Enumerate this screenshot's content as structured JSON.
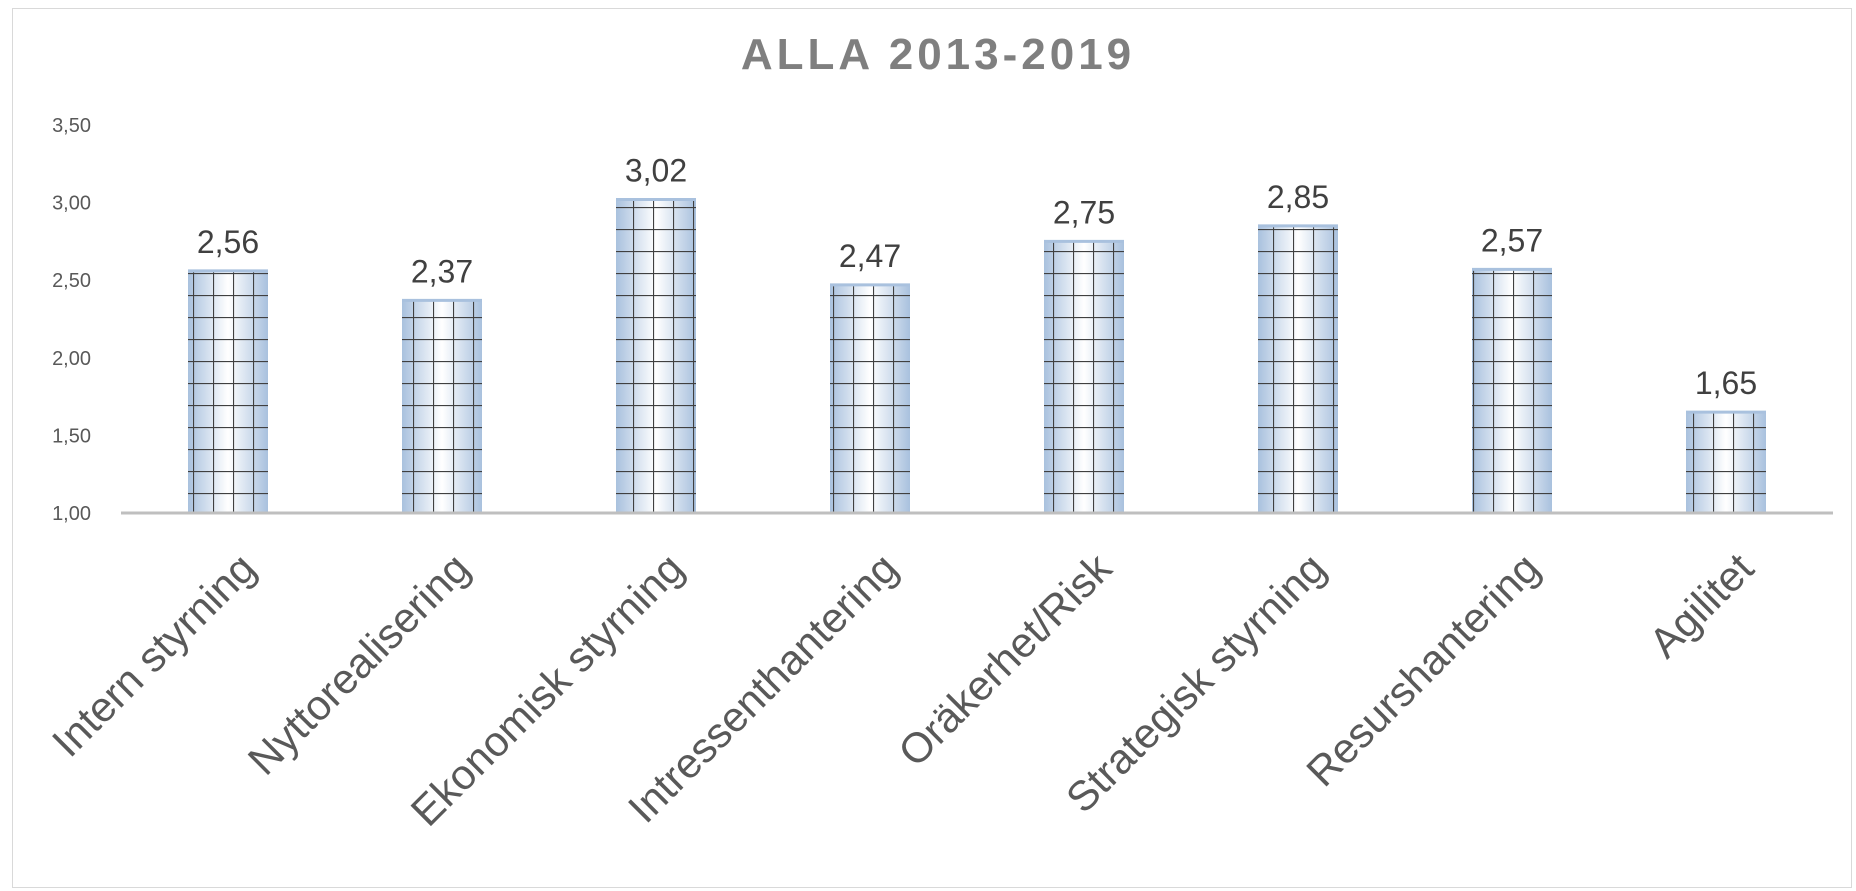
{
  "colors": {
    "bar_fill_edge": "#a9c1de",
    "bar_fill_center": "#ffffff",
    "grid_pattern": "#404040",
    "axis_line": "#bfbfbf",
    "title": "#7f7f7f"
  },
  "chart_data": {
    "type": "bar",
    "title": "ALLA 2013-2019",
    "categories": [
      "Intern styrning",
      "Nyttorealisering",
      "Ekonomisk styrning",
      "Intressenthantering",
      "Oräkerhet/Risk",
      "Strategisk styrning",
      "Resurshantering",
      "Agilitet"
    ],
    "values": [
      2.56,
      2.37,
      3.02,
      2.47,
      2.75,
      2.85,
      2.57,
      1.65
    ],
    "data_labels": [
      "2,56",
      "2,37",
      "3,02",
      "2,47",
      "2,75",
      "2,85",
      "2,57",
      "1,65"
    ],
    "ylim": [
      1.0,
      3.5
    ],
    "yticks": [
      1.0,
      1.5,
      2.0,
      2.5,
      3.0,
      3.5
    ],
    "ytick_labels": [
      "1,00",
      "1,50",
      "2,00",
      "2,50",
      "3,00",
      "3,50"
    ],
    "xlabel": "",
    "ylabel": "",
    "grid": false,
    "legend": "none"
  }
}
